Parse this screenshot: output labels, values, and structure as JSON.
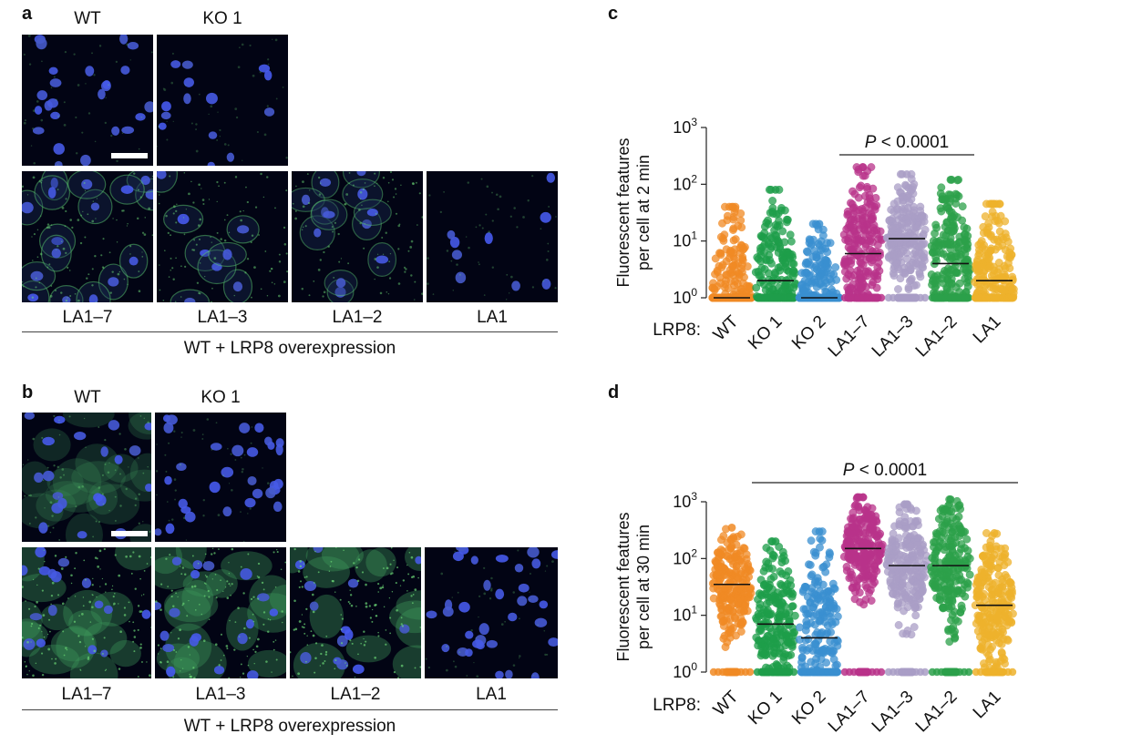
{
  "panels": {
    "a": {
      "letter": "a",
      "top_labels": [
        "WT",
        "KO 1"
      ],
      "bottom_labels": [
        "LA1–7",
        "LA1–3",
        "LA1–2",
        "LA1"
      ],
      "caption": "WT + LRP8 overexpression"
    },
    "b": {
      "letter": "b",
      "top_labels": [
        "WT",
        "KO 1"
      ],
      "bottom_labels": [
        "LA1–7",
        "LA1–3",
        "LA1–2",
        "LA1"
      ],
      "caption": "WT + LRP8 overexpression"
    }
  },
  "chart_data": [
    {
      "type": "scatter",
      "panel": "c",
      "ylabel_line1": "Fluorescent features",
      "ylabel_line2": "per cell at 2 min",
      "xlabel_prefix": "LRP8:",
      "y_scale": "log",
      "ylim": [
        1,
        1000
      ],
      "yticks": [
        {
          "base": "10",
          "exp": "0"
        },
        {
          "base": "10",
          "exp": "1"
        },
        {
          "base": "10",
          "exp": "2"
        },
        {
          "base": "10",
          "exp": "3"
        }
      ],
      "categories": [
        "WT",
        "KO 1",
        "KO 2",
        "LA1–7",
        "LA1–3",
        "LA1–2",
        "LA1"
      ],
      "colors": [
        "#F08A24",
        "#1E9E4A",
        "#3A8FD0",
        "#B8338A",
        "#A99EC6",
        "#2CA04A",
        "#EDB22C"
      ],
      "medians": [
        1,
        2,
        1,
        6,
        11,
        4,
        2
      ],
      "maxima": [
        40,
        80,
        20,
        200,
        150,
        120,
        45
      ],
      "p_value": {
        "italic": "P",
        "text": " < 0.0001",
        "span": [
          "LA1–7",
          "LA1–2"
        ]
      }
    },
    {
      "type": "scatter",
      "panel": "d",
      "ylabel_line1": "Fluorescent features",
      "ylabel_line2": "per cell at 30 min",
      "xlabel_prefix": "LRP8:",
      "y_scale": "log",
      "ylim": [
        1,
        1000
      ],
      "yticks": [
        {
          "base": "10",
          "exp": "0"
        },
        {
          "base": "10",
          "exp": "1"
        },
        {
          "base": "10",
          "exp": "2"
        },
        {
          "base": "10",
          "exp": "3"
        }
      ],
      "categories": [
        "WT",
        "KO 1",
        "KO 2",
        "LA1–7",
        "LA1–3",
        "LA1–2",
        "LA1"
      ],
      "colors": [
        "#F08A24",
        "#1E9E4A",
        "#3A8FD0",
        "#B8338A",
        "#A99EC6",
        "#2CA04A",
        "#EDB22C"
      ],
      "medians": [
        35,
        7,
        4,
        150,
        75,
        75,
        15
      ],
      "maxima": [
        350,
        200,
        300,
        1200,
        900,
        1100,
        280
      ],
      "p_value": {
        "italic": "P",
        "text": " < 0.0001",
        "span": [
          "KO 1",
          "LA1"
        ]
      }
    }
  ]
}
